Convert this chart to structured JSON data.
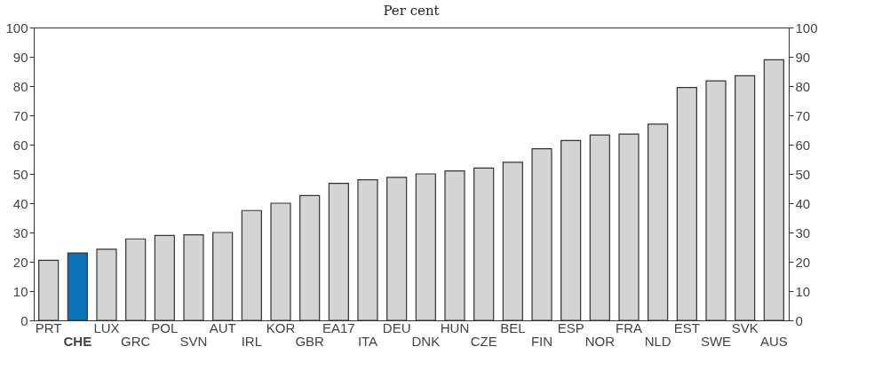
{
  "chart_data": {
    "type": "bar",
    "title": "Per cent",
    "categories": [
      "PRT",
      "CHE",
      "LUX",
      "GRC",
      "POL",
      "SVN",
      "AUT",
      "IRL",
      "KOR",
      "GBR",
      "EA17",
      "ITA",
      "DEU",
      "DNK",
      "HUN",
      "CZE",
      "BEL",
      "FIN",
      "ESP",
      "NOR",
      "FRA",
      "NLD",
      "EST",
      "SWE",
      "SVK",
      "AUS"
    ],
    "values": [
      20.5,
      23,
      24.3,
      27.8,
      29,
      29.2,
      30,
      37.5,
      40,
      42.6,
      46.8,
      48,
      48.8,
      50,
      51,
      52,
      54,
      58.6,
      61.4,
      63.3,
      63.6,
      67,
      79.5,
      81.8,
      83.5,
      89
    ],
    "colors": [
      "#d3d4d6",
      "#0b74b8",
      "#d3d4d6",
      "#d3d4d6",
      "#d3d4d6",
      "#d3d4d6",
      "#d3d4d6",
      "#d3d4d6",
      "#d3d4d6",
      "#d3d4d6",
      "#d3d4d6",
      "#d3d4d6",
      "#d3d4d6",
      "#d3d4d6",
      "#d3d4d6",
      "#d3d4d6",
      "#d3d4d6",
      "#d3d4d6",
      "#d3d4d6",
      "#d3d4d6",
      "#d3d4d6",
      "#d3d4d6",
      "#d3d4d6",
      "#d3d4d6",
      "#d3d4d6",
      "#d3d4d6"
    ],
    "ylim": [
      0,
      100
    ],
    "yticks": [
      0,
      10,
      20,
      30,
      40,
      50,
      60,
      70,
      80,
      90,
      100
    ],
    "y2lim": [
      0,
      100
    ],
    "y2ticks": [
      0,
      10,
      20,
      30,
      40,
      50,
      60,
      70,
      80,
      90,
      100
    ],
    "grid": false
  }
}
